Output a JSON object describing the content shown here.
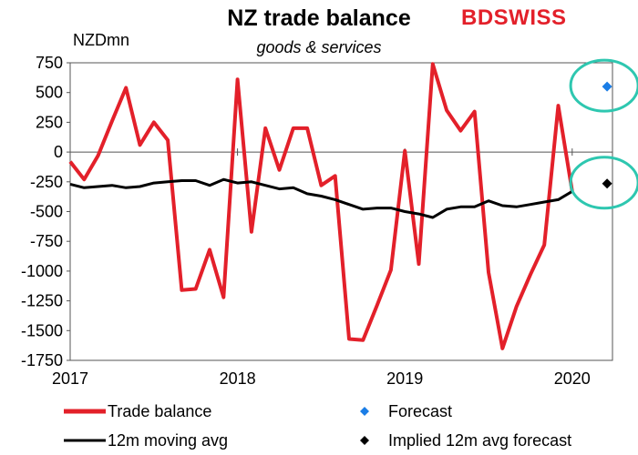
{
  "header": {
    "title": "NZ trade balance",
    "subtitle": "goods & services",
    "unit": "NZDmn",
    "logo": "BDSWISS"
  },
  "colors": {
    "trade": "#e3202a",
    "avg": "#000000",
    "forecast": "#1a7de6",
    "implied": "#000000",
    "highlight": "#2ec7b0"
  },
  "chart_data": {
    "type": "line",
    "title": "NZ trade balance",
    "subtitle": "goods & services",
    "ylabel": "NZDmn",
    "ylim": [
      -1750,
      750
    ],
    "yticks": [
      750,
      500,
      250,
      0,
      -250,
      -500,
      -750,
      -1000,
      -1250,
      -1500,
      -1750
    ],
    "xticks": [
      "2017",
      "2018",
      "2019",
      "2020"
    ],
    "x_start": "2017-01",
    "series": [
      {
        "name": "Trade balance",
        "values": [
          -80,
          -230,
          -30,
          260,
          540,
          60,
          250,
          100,
          -1160,
          -1150,
          -820,
          -1220,
          610,
          -670,
          200,
          -150,
          200,
          200,
          -280,
          -200,
          -1570,
          -1580,
          -1290,
          -990,
          10,
          -940,
          740,
          350,
          180,
          340,
          -1010,
          -1650,
          -1300,
          -1030,
          -780,
          390,
          -330
        ]
      },
      {
        "name": "12m moving avg",
        "values": [
          -270,
          -300,
          -290,
          -280,
          -300,
          -290,
          -260,
          -250,
          -240,
          -240,
          -280,
          -230,
          -260,
          -250,
          -280,
          -310,
          -300,
          -350,
          -370,
          -400,
          -440,
          -480,
          -470,
          -470,
          -500,
          -520,
          -550,
          -480,
          -460,
          -460,
          -410,
          -450,
          -460,
          -440,
          -420,
          -400,
          -330
        ]
      }
    ],
    "points": [
      {
        "name": "Forecast",
        "x": "2020-02",
        "y": 550
      },
      {
        "name": "Implied 12m avg forecast",
        "x": "2020-02",
        "y": -265
      }
    ],
    "legend": [
      {
        "label": "Trade balance",
        "kind": "line"
      },
      {
        "label": "Forecast",
        "kind": "diamond-blue"
      },
      {
        "label": "12m moving avg",
        "kind": "line-black"
      },
      {
        "label": "Implied 12m avg forecast",
        "kind": "diamond-black"
      }
    ],
    "legend_position": "bottom"
  }
}
